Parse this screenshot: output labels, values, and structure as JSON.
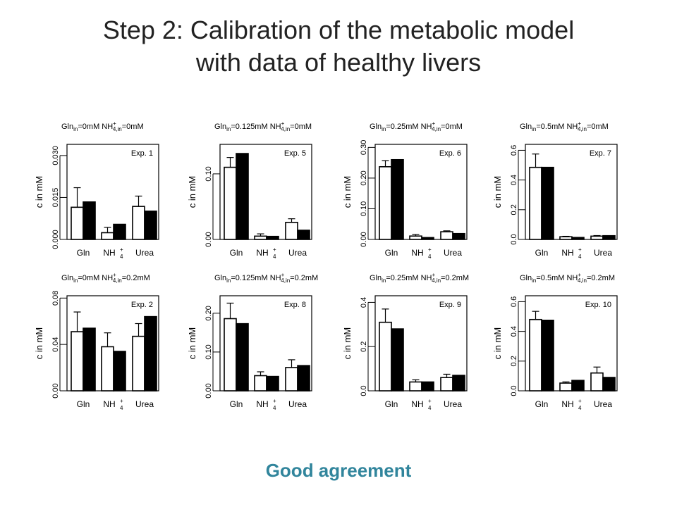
{
  "slide": {
    "title_line1": "Step 2: Calibration of the metabolic model",
    "title_line2": "with data of healthy livers",
    "footer": "Good agreement",
    "footer_color": "#31859c"
  },
  "chart_data": [
    {
      "type": "bar",
      "header_gln": "0mM",
      "header_nh4": "0mM",
      "exp": "Exp. 1",
      "ylabel": "c  in  mM",
      "categories": [
        "Gln",
        "NH4+",
        "Urea"
      ],
      "yticks": [
        "0.000",
        "0.015",
        "0.030"
      ],
      "ytick_values": [
        0,
        0.015,
        0.03
      ],
      "ylim": [
        0,
        0.034
      ],
      "series": [
        {
          "values": [
            0.0115,
            0.0024,
            0.0118
          ],
          "err": [
            0.0185,
            0.0043,
            0.0155
          ]
        },
        {
          "values": [
            0.0134,
            0.0054,
            0.0101
          ]
        }
      ]
    },
    {
      "type": "bar",
      "header_gln": "0.125mM",
      "header_nh4": "0mM",
      "exp": "Exp. 5",
      "ylabel": "c  in  mM",
      "categories": [
        "Gln",
        "NH4+",
        "Urea"
      ],
      "yticks": [
        "0.00",
        "0.10"
      ],
      "ytick_values": [
        0,
        0.1
      ],
      "ylim": [
        0,
        0.145
      ],
      "series": [
        {
          "values": [
            0.11,
            0.005,
            0.026
          ],
          "err": [
            0.125,
            0.0085,
            0.0315
          ]
        },
        {
          "values": [
            0.131,
            0.0046,
            0.014
          ]
        }
      ]
    },
    {
      "type": "bar",
      "header_gln": "0.25mM",
      "header_nh4": "0mM",
      "exp": "Exp. 6",
      "ylabel": "c  in  mM",
      "categories": [
        "Gln",
        "NH4+",
        "Urea"
      ],
      "yticks": [
        "0.00",
        "0.10",
        "0.20",
        "0.30"
      ],
      "ytick_values": [
        0,
        0.1,
        0.2,
        0.3
      ],
      "ylim": [
        0,
        0.31
      ],
      "series": [
        {
          "values": [
            0.237,
            0.011,
            0.025
          ],
          "err": [
            0.257,
            0.016,
            0.028
          ]
        },
        {
          "values": [
            0.26,
            0.006,
            0.019
          ]
        }
      ]
    },
    {
      "type": "bar",
      "header_gln": "0.5mM",
      "header_nh4": "0mM",
      "exp": "Exp. 7",
      "ylabel": "c  in  mM",
      "categories": [
        "Gln",
        "NH4+",
        "Urea"
      ],
      "yticks": [
        "0.0",
        "0.2",
        "0.4",
        "0.6"
      ],
      "ytick_values": [
        0,
        0.2,
        0.4,
        0.6
      ],
      "ylim": [
        0,
        0.64
      ],
      "series": [
        {
          "values": [
            0.485,
            0.018,
            0.022
          ],
          "err": [
            0.575,
            0.021,
            0.026
          ]
        },
        {
          "values": [
            0.485,
            0.013,
            0.025
          ]
        }
      ]
    },
    {
      "type": "bar",
      "header_gln": "0mM",
      "header_nh4": "0.2mM",
      "exp": "Exp. 2",
      "ylabel": "c  in  mM",
      "categories": [
        "Gln",
        "NH4+",
        "Urea"
      ],
      "yticks": [
        "0.00",
        "0.04",
        "0.08"
      ],
      "ytick_values": [
        0,
        0.04,
        0.08
      ],
      "ylim": [
        0,
        0.082
      ],
      "series": [
        {
          "values": [
            0.051,
            0.038,
            0.047
          ],
          "err": [
            0.068,
            0.05,
            0.058
          ]
        },
        {
          "values": [
            0.054,
            0.034,
            0.064
          ]
        }
      ]
    },
    {
      "type": "bar",
      "header_gln": "0.125mM",
      "header_nh4": "0.2mM",
      "exp": "Exp. 8",
      "ylabel": "c  in  mM",
      "categories": [
        "Gln",
        "NH4+",
        "Urea"
      ],
      "yticks": [
        "0.00",
        "0.10",
        "0.20"
      ],
      "ytick_values": [
        0,
        0.1,
        0.2
      ],
      "ylim": [
        0,
        0.245
      ],
      "series": [
        {
          "values": [
            0.186,
            0.039,
            0.06
          ],
          "err": [
            0.226,
            0.049,
            0.08
          ]
        },
        {
          "values": [
            0.173,
            0.037,
            0.065
          ]
        }
      ]
    },
    {
      "type": "bar",
      "header_gln": "0.25mM",
      "header_nh4": "0.2mM",
      "exp": "Exp. 9",
      "ylabel": "c  in  mM",
      "categories": [
        "Gln",
        "NH4+",
        "Urea"
      ],
      "yticks": [
        "0.0",
        "0.2",
        "0.4"
      ],
      "ytick_values": [
        0,
        0.2,
        0.4
      ],
      "ylim": [
        0,
        0.43
      ],
      "series": [
        {
          "values": [
            0.31,
            0.04,
            0.06
          ],
          "err": [
            0.37,
            0.05,
            0.075
          ]
        },
        {
          "values": [
            0.28,
            0.04,
            0.07
          ]
        }
      ]
    },
    {
      "type": "bar",
      "header_gln": "0.5mM",
      "header_nh4": "0.2mM",
      "exp": "Exp. 10",
      "ylabel": "c  in  mM",
      "categories": [
        "Gln",
        "NH4+",
        "Urea"
      ],
      "yticks": [
        "0.0",
        "0.2",
        "0.4",
        "0.6"
      ],
      "ytick_values": [
        0,
        0.2,
        0.4,
        0.6
      ],
      "ylim": [
        0,
        0.64
      ],
      "series": [
        {
          "values": [
            0.48,
            0.052,
            0.12
          ],
          "err": [
            0.535,
            0.06,
            0.16
          ]
        },
        {
          "values": [
            0.475,
            0.07,
            0.09
          ]
        }
      ]
    }
  ]
}
